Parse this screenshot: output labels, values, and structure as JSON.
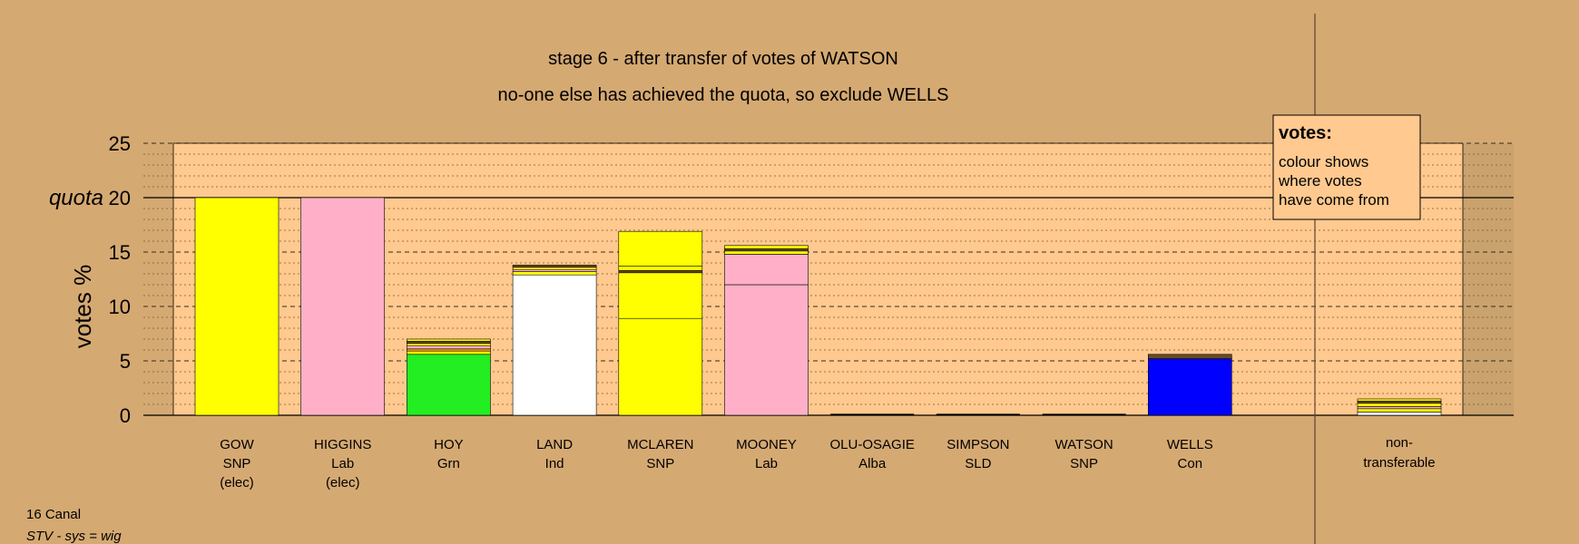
{
  "chart_data": {
    "type": "bar",
    "stacked": true,
    "title": "stage 6 - after transfer of votes of WATSON",
    "subtitle": "no-one else has achieved the quota, so exclude WELLS",
    "ylabel": "votes %",
    "quota_label": "quota",
    "quota": 20,
    "ylim": [
      0,
      25
    ],
    "yticks": [
      0,
      5,
      10,
      15,
      20,
      25
    ],
    "grid": true,
    "legend": {
      "title": "votes:",
      "lines": [
        "colour shows",
        "where votes",
        "have come from"
      ],
      "placement": "top-right"
    },
    "footer": [
      "16 Canal",
      "STV - sys = wig"
    ],
    "colors": {
      "SNP": "#ffff00",
      "Lab": "#ffb0c8",
      "Grn": "#22ee22",
      "Ind": "#ffffff",
      "Con": "#0000ff",
      "Alba": "#55aaff",
      "SLD": "#ff9900",
      "dark": "#6b4a1f",
      "plot_bg": "#ffc98f",
      "page_bg": "#d5a972"
    },
    "candidates": [
      {
        "name": "GOW",
        "party": "SNP",
        "note": "(elec)",
        "segments": [
          {
            "value": 20.0,
            "color": "#ffff00"
          }
        ]
      },
      {
        "name": "HIGGINS",
        "party": "Lab",
        "note": "(elec)",
        "segments": [
          {
            "value": 20.0,
            "color": "#ffb0c8"
          }
        ]
      },
      {
        "name": "HOY",
        "party": "Grn",
        "note": "",
        "segments": [
          {
            "value": 5.6,
            "color": "#22ee22"
          },
          {
            "value": 0.3,
            "color": "#ffff00"
          },
          {
            "value": 0.2,
            "color": "#ff9900"
          },
          {
            "value": 0.3,
            "color": "#ffb0c8"
          },
          {
            "value": 0.2,
            "color": "#ffff00"
          },
          {
            "value": 0.2,
            "color": "#6b4a1f"
          },
          {
            "value": 0.2,
            "color": "#ffff00"
          }
        ]
      },
      {
        "name": "LAND",
        "party": "Ind",
        "note": "",
        "segments": [
          {
            "value": 12.9,
            "color": "#ffffff"
          },
          {
            "value": 0.3,
            "color": "#ffff00"
          },
          {
            "value": 0.2,
            "color": "#ffb0c8"
          },
          {
            "value": 0.2,
            "color": "#ffff00"
          },
          {
            "value": 0.2,
            "color": "#6b4a1f"
          }
        ]
      },
      {
        "name": "MCLAREN",
        "party": "SNP",
        "note": "",
        "segments": [
          {
            "value": 8.9,
            "color": "#ffff00"
          },
          {
            "value": 4.2,
            "color": "#ffff00"
          },
          {
            "value": 0.2,
            "color": "#6b4a1f"
          },
          {
            "value": 0.4,
            "color": "#ffff00"
          },
          {
            "value": 3.2,
            "color": "#ffff00"
          }
        ]
      },
      {
        "name": "MOONEY",
        "party": "Lab",
        "note": "",
        "segments": [
          {
            "value": 12.0,
            "color": "#ffb0c8"
          },
          {
            "value": 2.8,
            "color": "#ffb0c8"
          },
          {
            "value": 0.3,
            "color": "#ffff00"
          },
          {
            "value": 0.2,
            "color": "#6b4a1f"
          },
          {
            "value": 0.3,
            "color": "#ffff00"
          }
        ]
      },
      {
        "name": "OLU-OSAGIE",
        "party": "Alba",
        "note": "",
        "segments": []
      },
      {
        "name": "SIMPSON",
        "party": "SLD",
        "note": "",
        "segments": []
      },
      {
        "name": "WATSON",
        "party": "SNP",
        "note": "",
        "segments": []
      },
      {
        "name": "WELLS",
        "party": "Con",
        "note": "",
        "segments": [
          {
            "value": 5.2,
            "color": "#0000ff"
          },
          {
            "value": 0.4,
            "color": "#6b4a1f"
          }
        ]
      }
    ],
    "nontransferable": {
      "label_lines": [
        "non-",
        "transferable"
      ],
      "segments": [
        {
          "value": 0.3,
          "color": "#ffffff"
        },
        {
          "value": 0.3,
          "color": "#ffff00"
        },
        {
          "value": 0.2,
          "color": "#ffb0c8"
        },
        {
          "value": 0.3,
          "color": "#ffff00"
        },
        {
          "value": 0.2,
          "color": "#6b4a1f"
        },
        {
          "value": 0.2,
          "color": "#ffff00"
        }
      ]
    }
  }
}
